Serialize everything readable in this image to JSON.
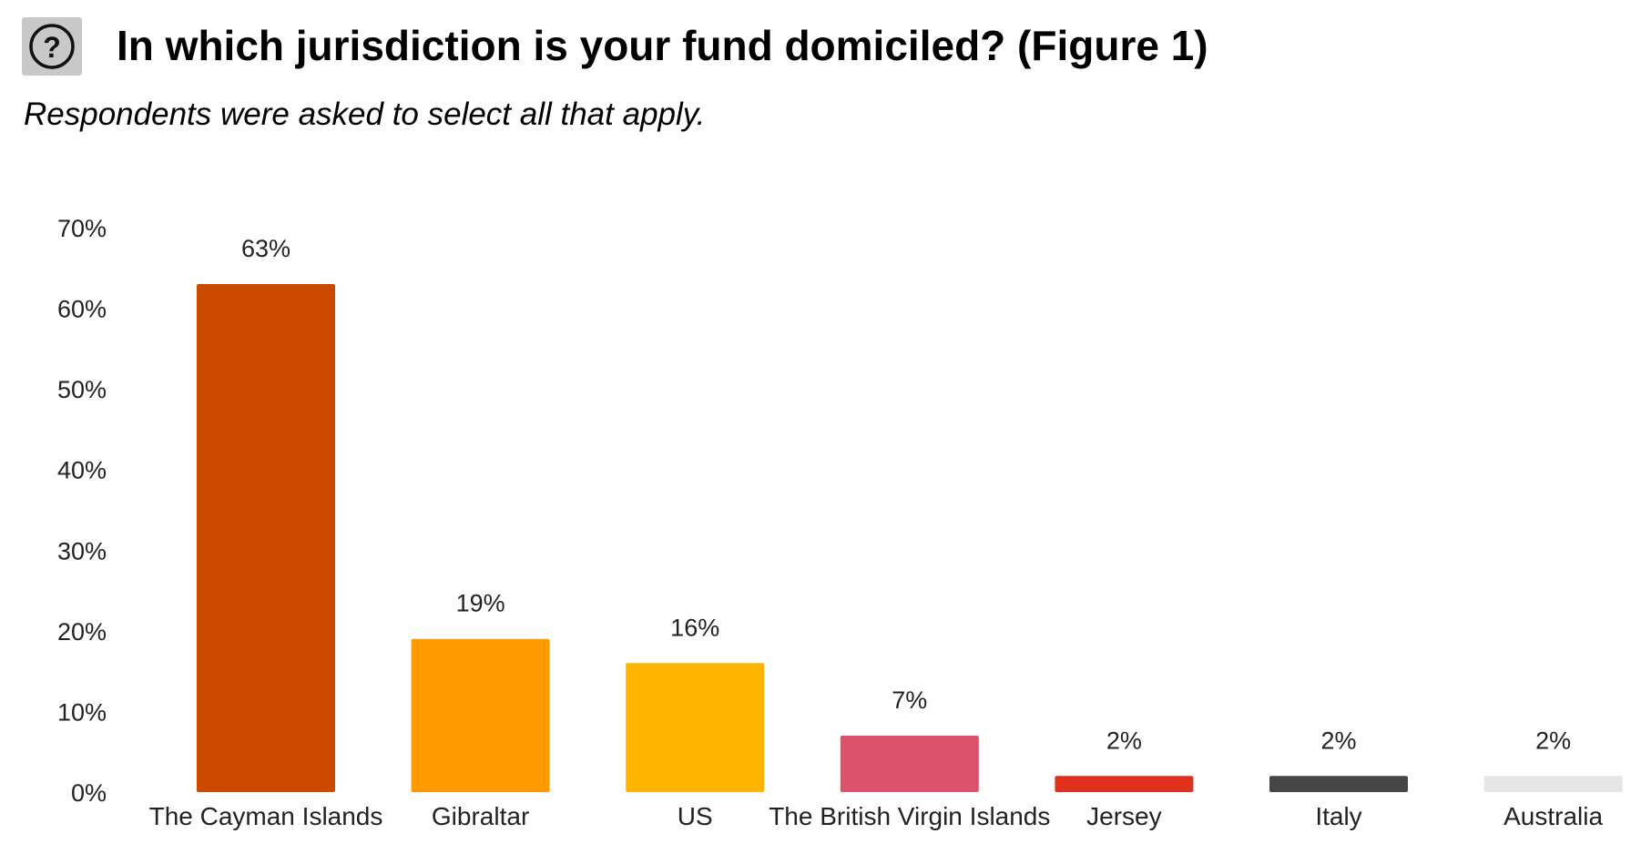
{
  "header": {
    "help_icon": "question-circle-icon",
    "title": "In which jurisdiction is your fund domiciled? (Figure 1)",
    "subtitle": "Respondents were asked to select all that apply."
  },
  "chart_data": {
    "type": "bar",
    "categories": [
      "The Cayman Islands",
      "Gibraltar",
      "US",
      "The British Virgin Islands",
      "Jersey",
      "Italy",
      "Australia"
    ],
    "values": [
      63,
      19,
      16,
      7,
      2,
      2,
      2
    ],
    "data_labels": [
      "63%",
      "19%",
      "16%",
      "7%",
      "2%",
      "2%",
      "2%"
    ],
    "colors": [
      "#cc4a00",
      "#ff9a00",
      "#ffb400",
      "#db536a",
      "#e0301e",
      "#464646",
      "#e6e6e6"
    ],
    "yticks": [
      "0%",
      "10%",
      "20%",
      "30%",
      "40%",
      "50%",
      "60%",
      "70%"
    ],
    "ylim": [
      0,
      70
    ],
    "xlabel": "",
    "ylabel": "",
    "grid": false,
    "legend": "none"
  }
}
